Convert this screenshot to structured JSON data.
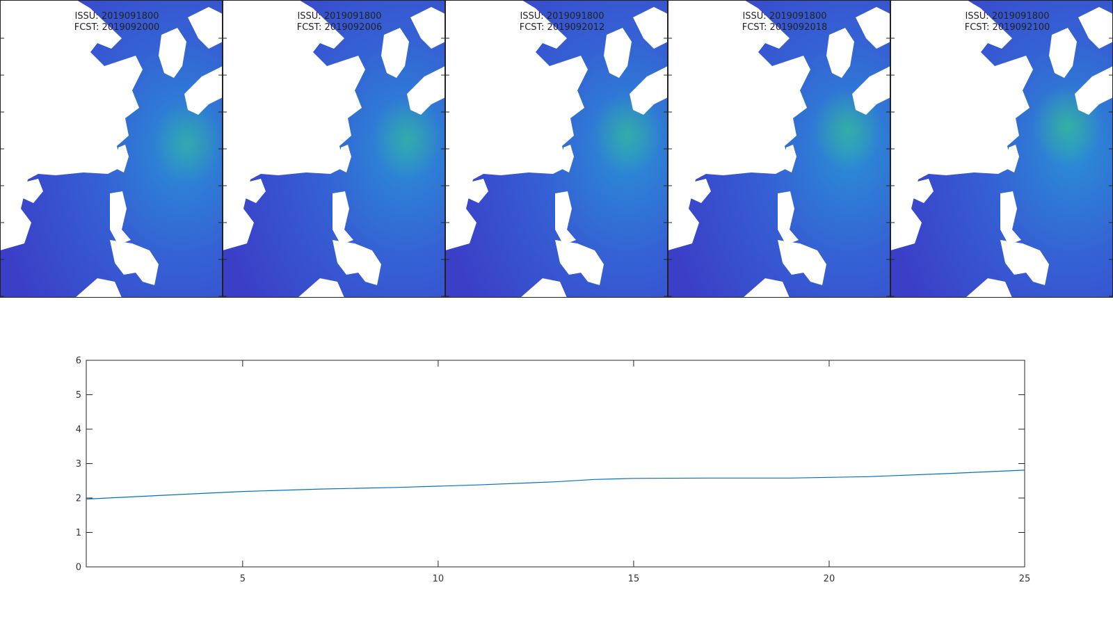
{
  "maps": {
    "panels": [
      {
        "issue": "ISSU: 2019091800",
        "forecast": "FCST: 2019092000",
        "hotspot_intensity": 0.55
      },
      {
        "issue": "ISSU: 2019091800",
        "forecast": "FCST: 2019092006",
        "hotspot_intensity": 0.6
      },
      {
        "issue": "ISSU: 2019091800",
        "forecast": "FCST: 2019092012",
        "hotspot_intensity": 0.62
      },
      {
        "issue": "ISSU: 2019091800",
        "forecast": "FCST: 2019092018",
        "hotspot_intensity": 0.66
      },
      {
        "issue": "ISSU: 2019091800",
        "forecast": "FCST: 2019092100",
        "hotspot_intensity": 0.72
      }
    ],
    "colors": {
      "ocean_low": "#3b3fc8",
      "ocean_mid": "#2a8fd6",
      "ocean_high": "#38c08f",
      "land": "#ffffff"
    }
  },
  "chart_data": {
    "type": "line",
    "title": "",
    "xlabel": "",
    "ylabel": "",
    "xlim": [
      1,
      25
    ],
    "ylim": [
      0,
      6
    ],
    "xticks": [
      5,
      10,
      15,
      20,
      25
    ],
    "yticks": [
      0,
      1,
      2,
      3,
      4,
      5,
      6
    ],
    "grid": false,
    "series": [
      {
        "color": "#0072bd",
        "x": [
          1,
          3,
          5,
          7,
          9,
          11,
          13,
          14,
          15,
          17,
          19,
          21,
          23,
          25
        ],
        "y": [
          1.97,
          2.08,
          2.19,
          2.26,
          2.31,
          2.38,
          2.47,
          2.54,
          2.57,
          2.58,
          2.58,
          2.62,
          2.71,
          2.81
        ]
      }
    ]
  }
}
